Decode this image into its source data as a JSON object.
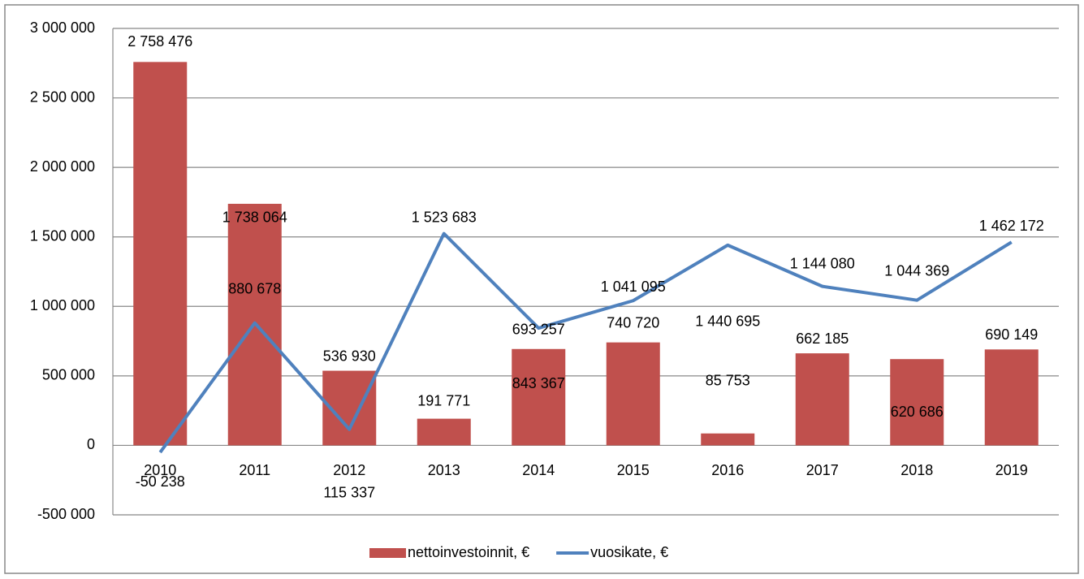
{
  "chart_data": {
    "type": "bar-line",
    "categories": [
      "2010",
      "2011",
      "2012",
      "2013",
      "2014",
      "2015",
      "2016",
      "2017",
      "2018",
      "2019"
    ],
    "series": [
      {
        "name": "nettoinvestoinnit, €",
        "type": "bar",
        "color": "#c0504d",
        "values": [
          2758476,
          1738064,
          536930,
          191771,
          693257,
          740720,
          85753,
          662185,
          620686,
          690149
        ],
        "value_labels": [
          "2 758 476",
          "1 738 064",
          "536 930",
          "191 771",
          "693 257",
          "740 720",
          "85 753",
          "662 185",
          "620 686",
          "690 149"
        ]
      },
      {
        "name": "vuosikate, €",
        "type": "line",
        "color": "#4f81bd",
        "values": [
          -50238,
          880678,
          115337,
          1523683,
          843367,
          1041095,
          1440695,
          1144080,
          1044369,
          1462172
        ],
        "value_labels": [
          "-50 238",
          "880 678",
          "115 337",
          "1 523 683",
          "843 367",
          "1 041 095",
          "1 440 695",
          "1 144 080",
          "1 044 369",
          "1 462 172"
        ]
      }
    ],
    "ylim": [
      -500000,
      3000000
    ],
    "yticks": [
      {
        "value": -500000,
        "label": "-500 000"
      },
      0,
      {
        "value": 500000,
        "label": "500 000"
      },
      {
        "value": 1000000,
        "label": "1 000 000"
      },
      {
        "value": 1500000,
        "label": "1 500 000"
      },
      {
        "value": 2000000,
        "label": "2 000 000"
      },
      {
        "value": 2500000,
        "label": "2 500 000"
      },
      {
        "value": 3000000,
        "label": "3 000 000"
      }
    ],
    "grid": true,
    "legend": "bottom"
  }
}
